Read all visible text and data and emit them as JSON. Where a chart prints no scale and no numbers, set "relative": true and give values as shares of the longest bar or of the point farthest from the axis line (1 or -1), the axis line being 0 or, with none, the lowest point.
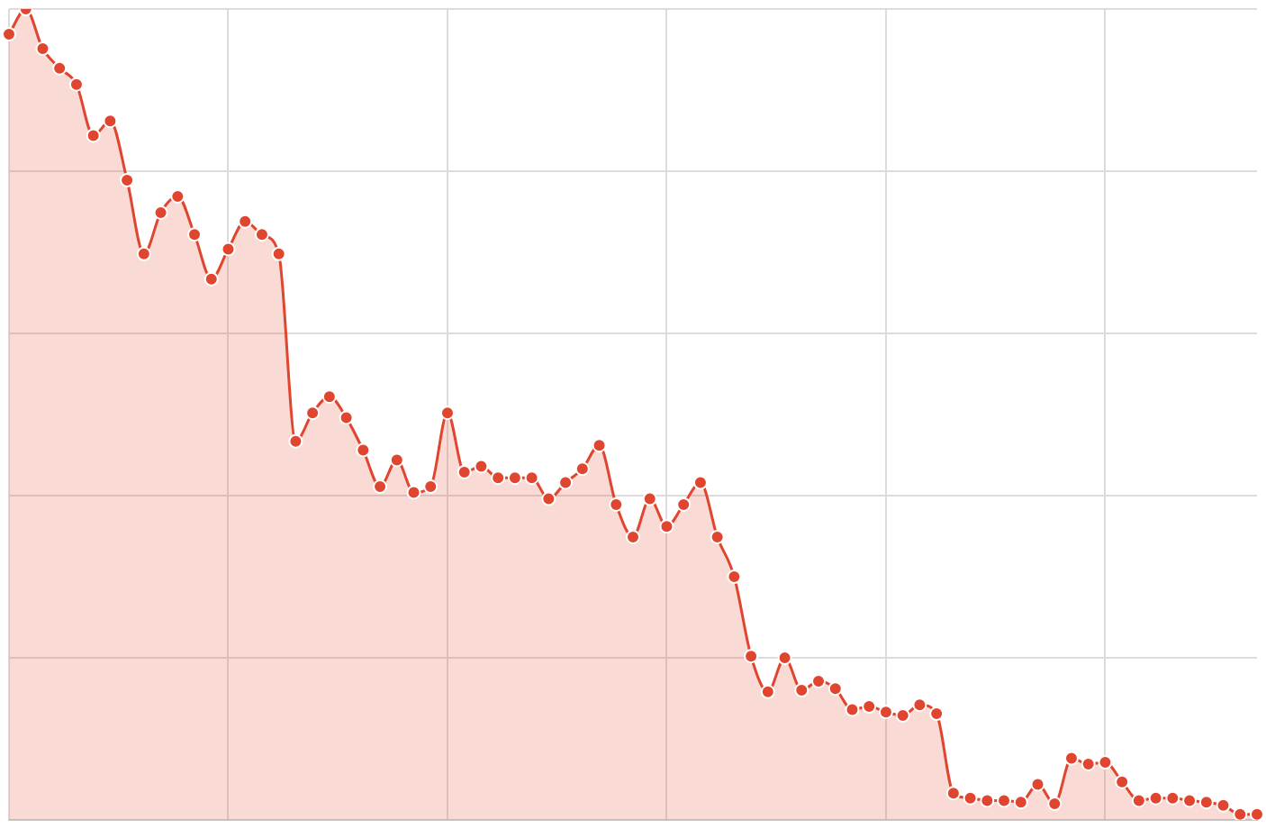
{
  "chart_data": {
    "type": "area",
    "relative": true,
    "grid": true,
    "marker": "circle",
    "line_style": "solid",
    "legend": false,
    "categories": [
      null,
      null,
      null,
      null,
      null,
      null,
      null,
      null,
      null,
      null,
      null,
      null,
      null,
      null,
      null,
      null,
      null,
      null,
      null,
      null,
      null,
      null,
      null,
      null,
      null,
      null,
      null,
      null,
      null,
      null,
      null,
      null,
      null,
      null,
      null,
      null,
      null,
      null,
      null,
      null,
      null,
      null,
      null,
      null,
      null,
      null,
      null,
      null,
      null,
      null,
      null,
      null,
      null,
      null,
      null,
      null,
      null,
      null,
      null,
      null,
      null,
      null,
      null,
      null,
      null,
      null,
      null,
      null,
      null,
      null,
      null,
      null,
      null,
      null,
      null
    ],
    "series": [
      {
        "color": "#e0452f",
        "values": [
          0.969,
          1,
          0.951,
          0.927,
          0.907,
          0.844,
          0.862,
          0.789,
          0.698,
          0.749,
          0.769,
          0.722,
          0.667,
          0.704,
          0.738,
          0.722,
          0.698,
          0.467,
          0.502,
          0.522,
          0.496,
          0.456,
          0.411,
          0.444,
          0.404,
          0.411,
          0.502,
          0.429,
          0.436,
          0.422,
          0.422,
          0.422,
          0.396,
          0.416,
          0.433,
          0.462,
          0.389,
          0.349,
          0.396,
          0.362,
          0.389,
          0.416,
          0.349,
          0.3,
          0.202,
          0.158,
          0.2,
          0.16,
          0.171,
          0.162,
          0.136,
          0.14,
          0.133,
          0.129,
          0.142,
          0.131,
          0.033,
          0.027,
          0.024,
          0.024,
          0.022,
          0.044,
          0.02,
          0.076,
          0.069,
          0.071,
          0.047,
          0.024,
          0.027,
          0.027,
          0.024,
          0.022,
          0.018,
          0.007,
          0.007
        ]
      }
    ]
  }
}
